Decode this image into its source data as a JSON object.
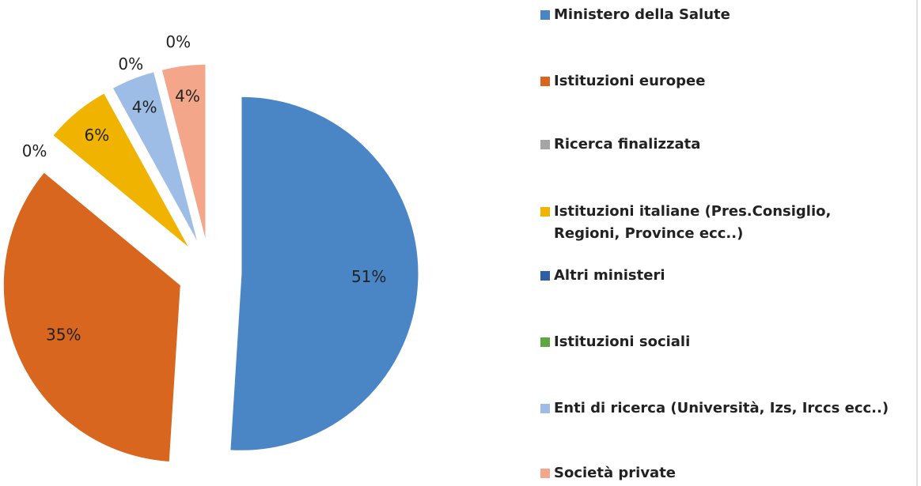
{
  "chart_data": {
    "type": "pie",
    "categories": [
      "Ministero della Salute",
      "Istituzioni europee",
      "Ricerca finalizzata",
      "Istituzioni italiane (Pres.Consiglio, Regioni, Province ecc..)",
      "Altri ministeri",
      "Istituzioni sociali",
      "Enti di ricerca (Università, Izs, Irccs ecc..)",
      "Società private"
    ],
    "values": [
      51,
      35,
      0,
      6,
      0,
      0,
      4,
      4
    ],
    "value_labels": [
      "51%",
      "35%",
      "0%",
      "6%",
      "0%",
      "0%",
      "4%",
      "4%"
    ],
    "colors": [
      "#4a86c5",
      "#d9661e",
      "#a5a5a5",
      "#f0b400",
      "#2e5ea8",
      "#5fa641",
      "#9dbde6",
      "#f4a68a"
    ],
    "legend": "right"
  }
}
